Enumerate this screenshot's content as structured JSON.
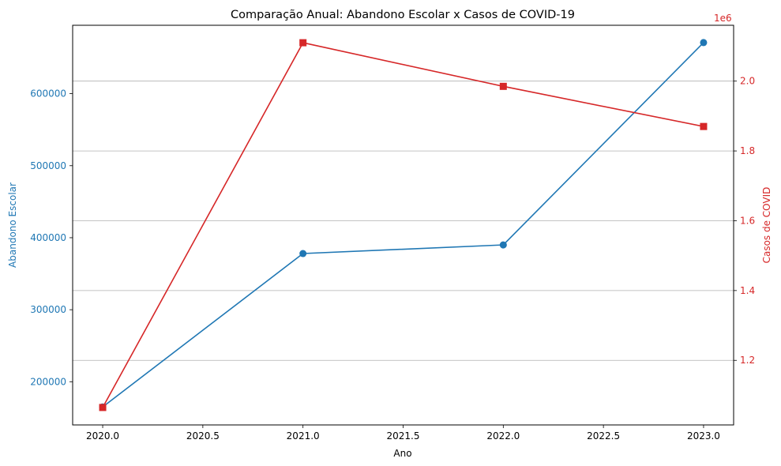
{
  "chart_data": {
    "type": "line",
    "title": "Comparação Anual: Abandono Escolar x Casos de COVID-19",
    "xlabel": "Ano",
    "ylabel_left": "Abandono Escolar",
    "ylabel_right": "Casos de COVID",
    "right_axis_multiplier": "1e6",
    "x": [
      2020,
      2021,
      2022,
      2023
    ],
    "xlim": [
      2019.85,
      2023.15
    ],
    "xticks": [
      2020.0,
      2020.5,
      2021.0,
      2021.5,
      2022.0,
      2022.5,
      2023.0
    ],
    "xtick_labels": [
      "2020.0",
      "2020.5",
      "2021.0",
      "2021.5",
      "2022.0",
      "2022.5",
      "2023.0"
    ],
    "ylim_left": [
      140000,
      695000
    ],
    "yticks_left": [
      200000,
      300000,
      400000,
      500000,
      600000
    ],
    "ytick_labels_left": [
      "200000",
      "300000",
      "400000",
      "500000",
      "600000"
    ],
    "ylim_right": [
      1.015,
      2.16
    ],
    "yticks_right": [
      1.2,
      1.4,
      1.6,
      1.8,
      2.0
    ],
    "ytick_labels_right": [
      "1.2",
      "1.4",
      "1.6",
      "1.8",
      "2.0"
    ],
    "grid": "horizontal lines at right-axis ticks",
    "series": [
      {
        "axis": "left",
        "color": "#1f77b4",
        "marker": "circle",
        "values": [
          165000,
          378000,
          390000,
          671000
        ]
      },
      {
        "axis": "right",
        "color": "#d62728",
        "marker": "square",
        "values": [
          1.065,
          2.11,
          1.985,
          1.87
        ]
      }
    ]
  }
}
